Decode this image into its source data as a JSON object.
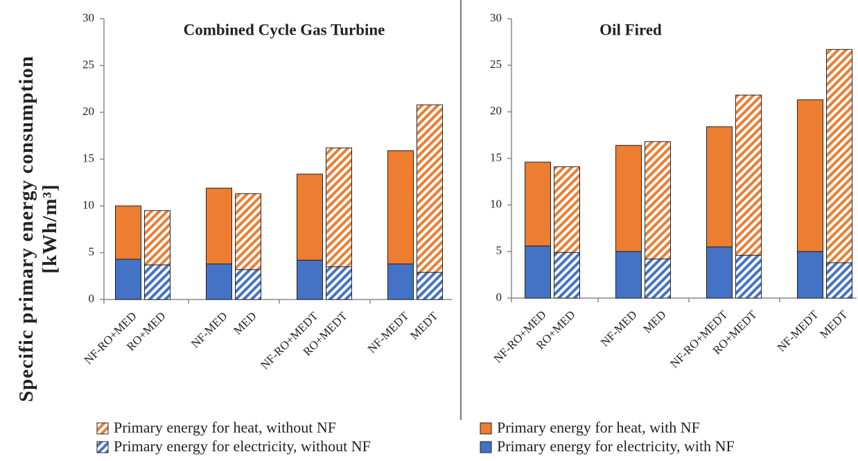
{
  "chart_data": [
    {
      "type": "bar",
      "stacked": true,
      "title": "Combined Cycle Gas Turbine",
      "ylabel": [
        "Specific primary energy consumption",
        "[kWh/m³]"
      ],
      "categories": [
        "NF-RO+MED",
        "RO+MED",
        "NF-MED",
        "MED",
        "NF-RO+MEDT",
        "RO+MEDT",
        "NF-MEDT",
        "MEDT"
      ],
      "series": [
        {
          "name": "Primary energy for electricity, with NF",
          "color": "#4472c4",
          "hatch": false,
          "values": [
            4.3,
            null,
            3.8,
            null,
            4.2,
            null,
            3.8,
            null
          ]
        },
        {
          "name": "Primary energy for heat, with NF",
          "color": "#ed7d31",
          "hatch": false,
          "values": [
            5.7,
            null,
            8.1,
            null,
            9.2,
            null,
            12.1,
            null
          ]
        },
        {
          "name": "Primary energy for electricity, without NF",
          "color": "#4472c4",
          "hatch": true,
          "values": [
            null,
            3.7,
            null,
            3.2,
            null,
            3.5,
            null,
            2.9
          ]
        },
        {
          "name": "Primary energy for heat, without NF",
          "color": "#ed7d31",
          "hatch": true,
          "values": [
            null,
            5.8,
            null,
            8.1,
            null,
            12.7,
            null,
            17.9
          ]
        }
      ],
      "ylim": [
        0,
        30
      ],
      "yticks": [
        0,
        5,
        10,
        15,
        20,
        25,
        30
      ]
    },
    {
      "type": "bar",
      "stacked": true,
      "title": "Oil Fired",
      "categories": [
        "NF-RO+MED",
        "RO+MED",
        "NF-MED",
        "MED",
        "NF-RO+MEDT",
        "RO+MEDT",
        "NF-MEDT",
        "MEDT"
      ],
      "series": [
        {
          "name": "Primary energy for electricity, with NF",
          "color": "#4472c4",
          "hatch": false,
          "values": [
            5.6,
            null,
            5.0,
            null,
            5.5,
            null,
            5.0,
            null
          ]
        },
        {
          "name": "Primary energy for heat, with NF",
          "color": "#ed7d31",
          "hatch": false,
          "values": [
            9.0,
            null,
            11.4,
            null,
            12.9,
            null,
            16.3,
            null
          ]
        },
        {
          "name": "Primary energy for electricity, without NF",
          "color": "#4472c4",
          "hatch": true,
          "values": [
            null,
            4.9,
            null,
            4.2,
            null,
            4.6,
            null,
            3.8
          ]
        },
        {
          "name": "Primary energy for heat, without NF",
          "color": "#ed7d31",
          "hatch": true,
          "values": [
            null,
            9.2,
            null,
            12.6,
            null,
            17.2,
            null,
            22.9
          ]
        }
      ],
      "ylim": [
        0,
        30
      ],
      "yticks": [
        0,
        5,
        10,
        15,
        20,
        25,
        30
      ]
    }
  ]
}
